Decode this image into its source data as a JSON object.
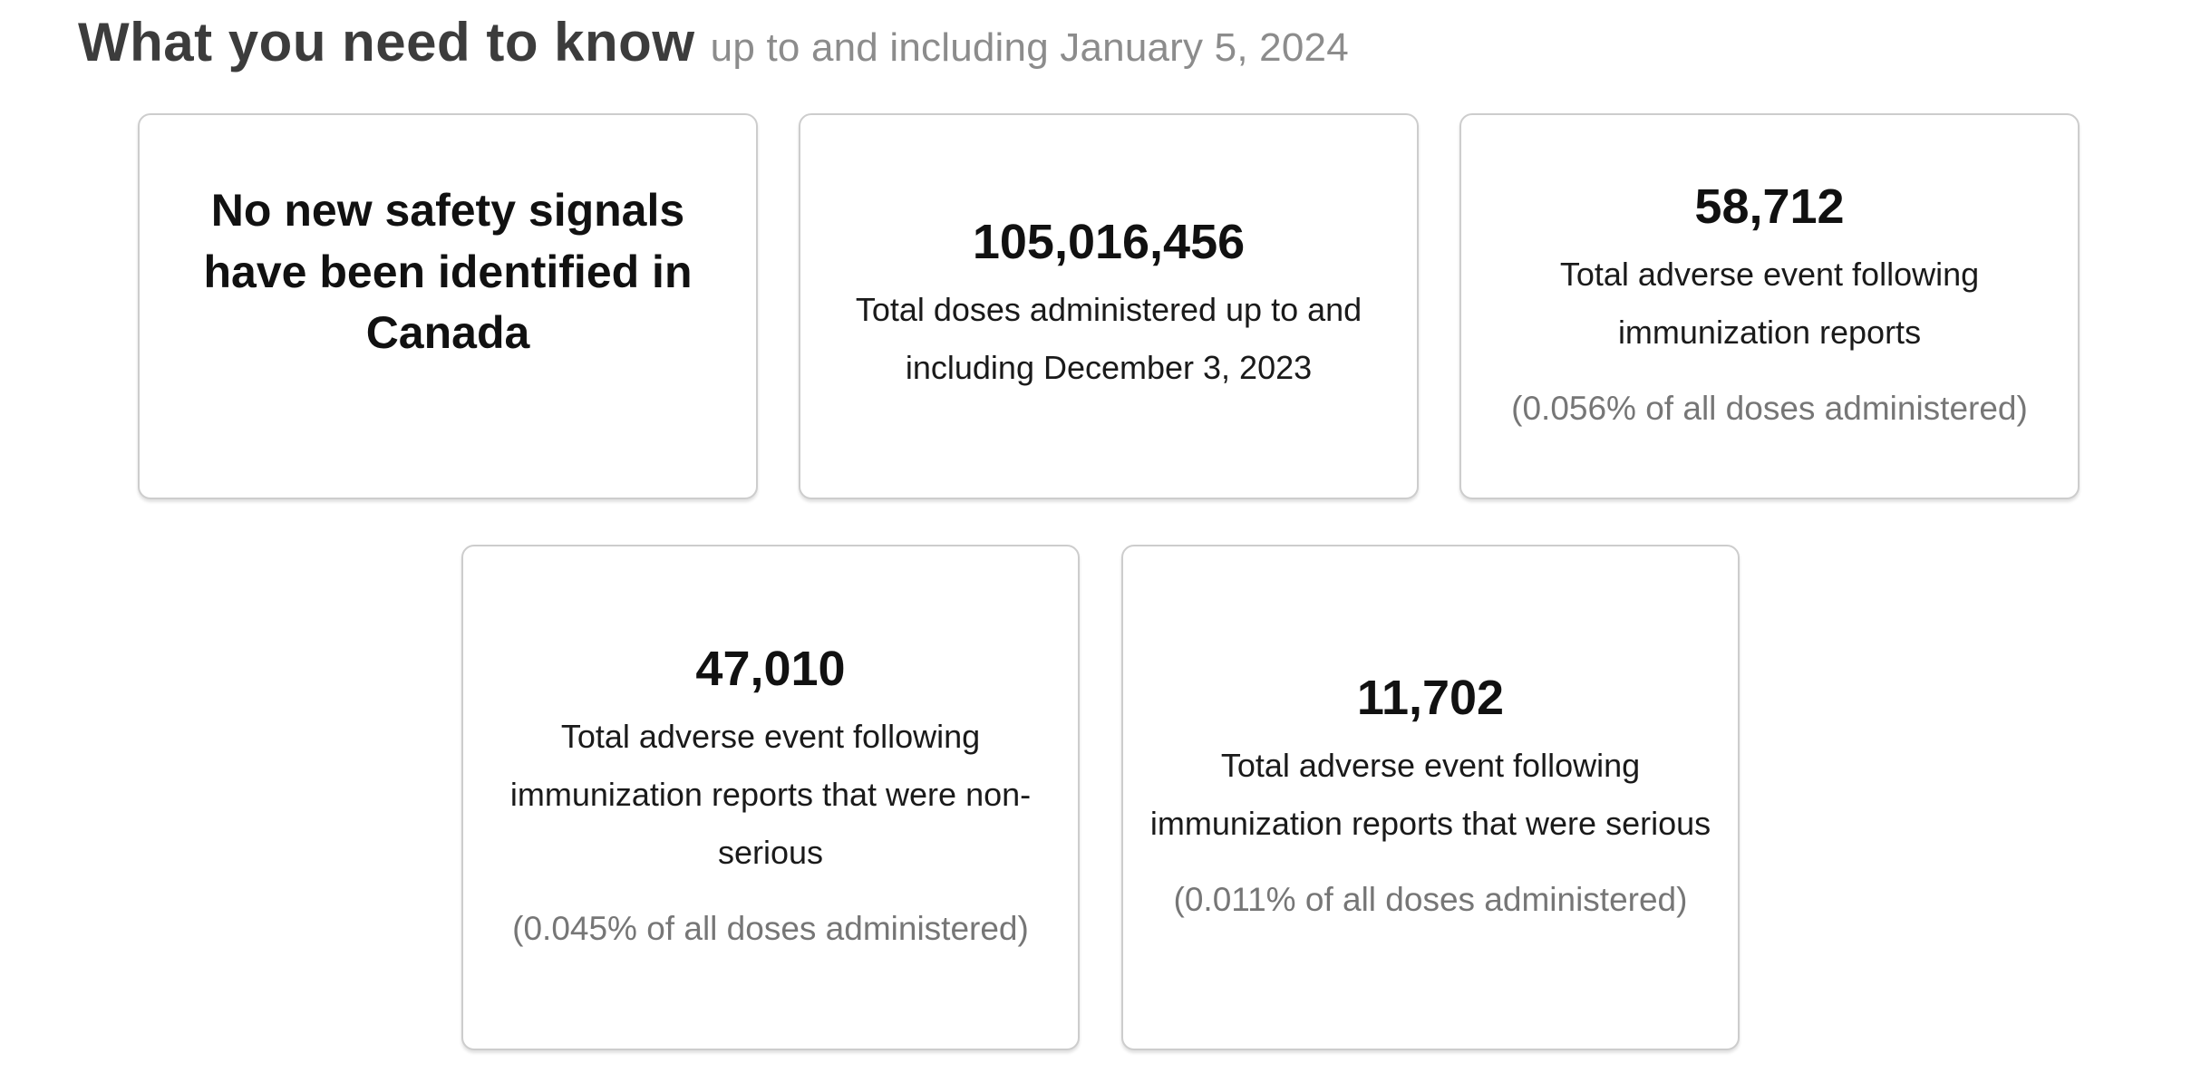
{
  "header": {
    "title": "What you need to know",
    "subtitle": "up to and including January 5, 2024"
  },
  "cards": [
    {
      "headline": "No new safety signals have been identified in Canada"
    },
    {
      "value": "105,016,456",
      "label": "Total doses administered up to and including December 3, 2023"
    },
    {
      "value": "58,712",
      "label": "Total adverse event following immunization reports",
      "note": "(0.056% of all doses administered)"
    },
    {
      "value": "47,010",
      "label": "Total adverse event following immunization reports that were non-serious",
      "note": "(0.045% of all doses administered)"
    },
    {
      "value": "11,702",
      "label": "Total adverse event following immunization reports that were serious",
      "note": "(0.011% of all doses administered)"
    }
  ],
  "colors": {
    "title-color": "#3c3c3c",
    "subtitle-color": "#8c8c8c",
    "text-color": "#111111",
    "muted-color": "#767676",
    "card-border": "#cdcdcd",
    "page-bg": "#ffffff"
  }
}
